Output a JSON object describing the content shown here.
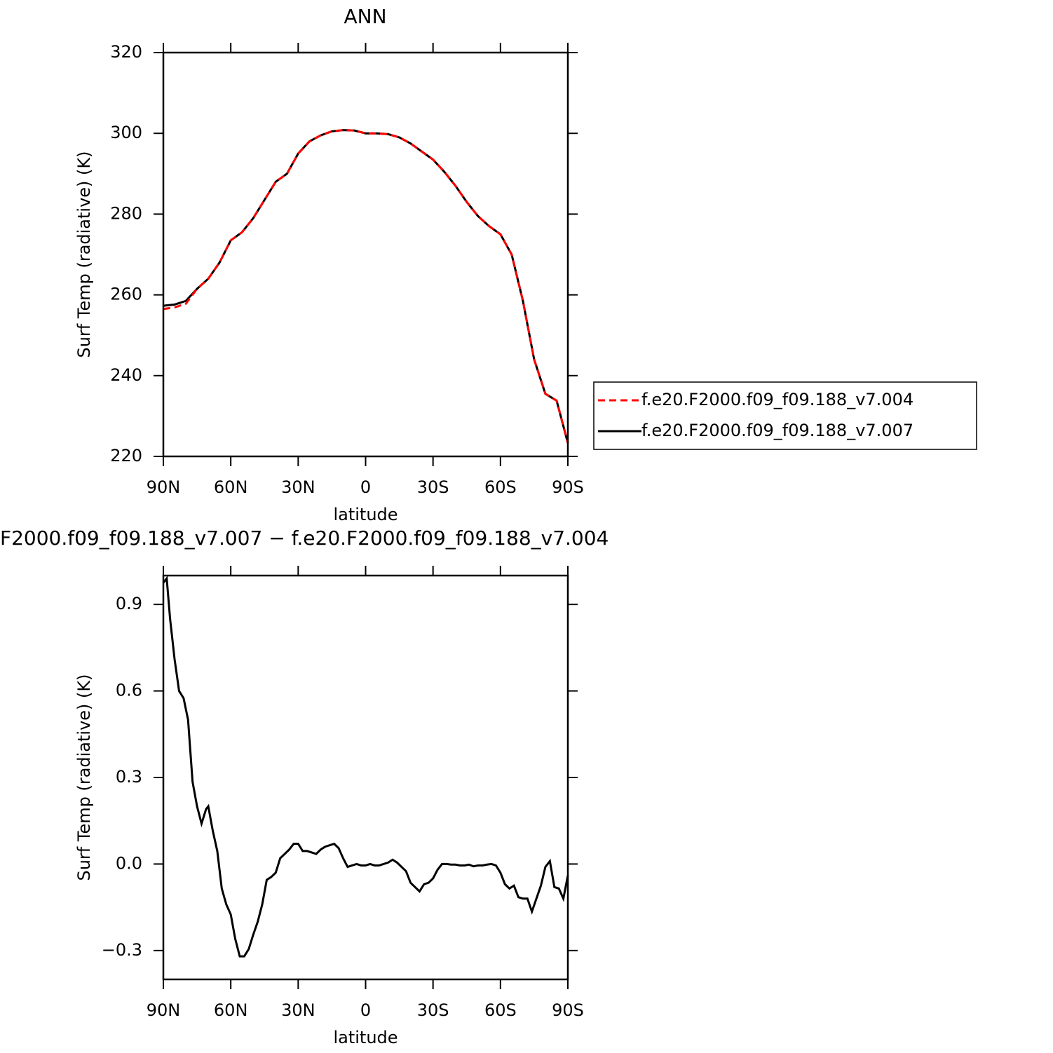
{
  "chart_data": [
    {
      "type": "line",
      "title": "ANN",
      "x_label": "latitude",
      "y_label": "Surf Temp (radiative) (K)",
      "x": [
        90,
        85,
        80,
        75,
        70,
        65,
        60,
        55,
        50,
        45,
        40,
        35,
        30,
        25,
        20,
        15,
        10,
        5,
        0,
        -5,
        -10,
        -15,
        -20,
        -25,
        -30,
        -35,
        -40,
        -45,
        -50,
        -55,
        -60,
        -65,
        -70,
        -75,
        -80,
        -85,
        -90
      ],
      "series": [
        {
          "name": "f.e20.F2000.f09_f09.188_v7.004",
          "color": "#ff0000",
          "dash": "dashed",
          "values": [
            256.5,
            256.9,
            257.8,
            261.5,
            264,
            268,
            273.5,
            275.5,
            279,
            283.5,
            288,
            290,
            295,
            298,
            299.5,
            300.5,
            300.8,
            300.7,
            300,
            300,
            299.8,
            299,
            297.5,
            295.5,
            293.5,
            290.5,
            287,
            283,
            279.5,
            277,
            275,
            270,
            258.5,
            244,
            235.5,
            233.8,
            223.3
          ]
        },
        {
          "name": "f.e20.F2000.f09_f09.188_v7.007",
          "color": "#000000",
          "dash": "solid",
          "values": [
            257.3,
            257.6,
            258.5,
            261.5,
            264,
            268,
            273.5,
            275.5,
            279,
            283.5,
            288,
            290,
            295,
            298,
            299.5,
            300.5,
            300.8,
            300.7,
            300,
            300,
            299.8,
            299,
            297.5,
            295.5,
            293.5,
            290.5,
            287,
            283,
            279.5,
            277,
            275,
            270,
            258.5,
            244,
            235.5,
            233.8,
            223.3
          ]
        }
      ],
      "xlim": [
        90,
        -90
      ],
      "xticks": [
        {
          "value": 90,
          "label": "90N"
        },
        {
          "value": 60,
          "label": "60N"
        },
        {
          "value": 30,
          "label": "30N"
        },
        0,
        {
          "value": -30,
          "label": "30S"
        },
        {
          "value": -60,
          "label": "60S"
        },
        {
          "value": -90,
          "label": "90S"
        }
      ],
      "ylim": [
        220,
        320
      ],
      "yticks": [
        220,
        240,
        260,
        280,
        300,
        320
      ],
      "legend": "outside-right"
    },
    {
      "type": "line",
      "title": "F2000.f09_f09.188_v7.007 − f.e20.F2000.f09_f09.188_v7.004",
      "x_label": "latitude",
      "y_label": "Surf Temp (radiative) (K)",
      "x": [
        90,
        88.5,
        87,
        85,
        83,
        81,
        79,
        77,
        75,
        73,
        71,
        70,
        68,
        66,
        64,
        62,
        60,
        58,
        56,
        54,
        52,
        50,
        48,
        46,
        44,
        42,
        40,
        38,
        36,
        34,
        32,
        30,
        28,
        26,
        24,
        22,
        20,
        18,
        16,
        14,
        12,
        10,
        8,
        6,
        4,
        2,
        0,
        -2,
        -4,
        -6,
        -8,
        -10,
        -12,
        -14,
        -16,
        -18,
        -20,
        -22,
        -24,
        -26,
        -28,
        -30,
        -32,
        -34,
        -36,
        -38,
        -40,
        -42,
        -44,
        -46,
        -48,
        -50,
        -52,
        -54,
        -56,
        -58,
        -60,
        -62,
        -64,
        -66,
        -68,
        -70,
        -72,
        -74,
        -76,
        -78,
        -80,
        -82,
        -84,
        -86,
        -88,
        -90
      ],
      "values": [
        0.975,
        0.99,
        0.85,
        0.71,
        0.6,
        0.575,
        0.5,
        0.285,
        0.2,
        0.14,
        0.19,
        0.2,
        0.115,
        0.045,
        -0.085,
        -0.14,
        -0.175,
        -0.26,
        -0.32,
        -0.32,
        -0.295,
        -0.245,
        -0.2,
        -0.14,
        -0.055,
        -0.045,
        -0.03,
        0.02,
        0.035,
        0.05,
        0.07,
        0.07,
        0.045,
        0.045,
        0.04,
        0.035,
        0.05,
        0.06,
        0.065,
        0.07,
        0.055,
        0.02,
        -0.01,
        -0.005,
        0,
        -0.005,
        -0.005,
        0,
        -0.005,
        -0.005,
        0,
        0.005,
        0.015,
        0.005,
        -0.01,
        -0.025,
        -0.065,
        -0.08,
        -0.095,
        -0.07,
        -0.065,
        -0.05,
        -0.02,
        0,
        0,
        -0.002,
        -0.002,
        -0.005,
        -0.005,
        -0.002,
        -0.008,
        -0.005,
        -0.005,
        -0.002,
        0,
        -0.005,
        -0.03,
        -0.07,
        -0.085,
        -0.075,
        -0.115,
        -0.12,
        -0.12,
        -0.165,
        -0.12,
        -0.075,
        -0.01,
        0.01,
        -0.08,
        -0.085,
        -0.12,
        -0.04
      ],
      "color": "#000000",
      "xlim": [
        90,
        -90
      ],
      "xticks": [
        {
          "value": 90,
          "label": "90N"
        },
        {
          "value": 60,
          "label": "60N"
        },
        {
          "value": 30,
          "label": "30N"
        },
        0,
        {
          "value": -30,
          "label": "30S"
        },
        {
          "value": -60,
          "label": "60S"
        },
        {
          "value": -90,
          "label": "90S"
        }
      ],
      "ylim": [
        -0.4,
        1.0
      ],
      "yticks": [
        {
          "value": -0.3,
          "label": "−0.3"
        },
        {
          "value": 0,
          "label": "0.0"
        },
        0.3,
        0.6,
        0.9
      ]
    }
  ]
}
